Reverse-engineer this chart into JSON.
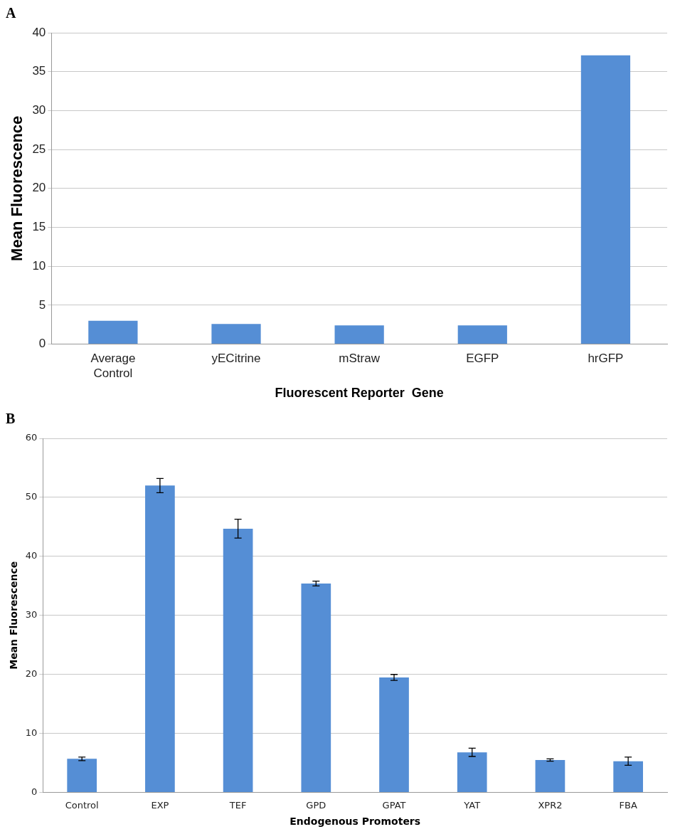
{
  "chart_data": [
    {
      "type": "bar",
      "title": "A",
      "categories": [
        "Average Control",
        "yECitrine",
        "mStraw",
        "EGFP",
        "hrGFP"
      ],
      "values": [
        3.0,
        2.6,
        2.4,
        2.4,
        37.1
      ],
      "color": "#558ed5",
      "xlabel": "Fluorescent Reporter  Gene",
      "ylabel": "Mean Fluorescence",
      "ylim": [
        0,
        40
      ],
      "yticks": [
        0,
        5,
        10,
        15,
        20,
        25,
        30,
        35,
        40
      ],
      "grid": "y"
    },
    {
      "type": "bar",
      "title": "B",
      "categories": [
        "Control",
        "EXP",
        "TEF",
        "GPD",
        "GPAT",
        "YAT",
        "XPR2",
        "FBA"
      ],
      "values": [
        5.7,
        52,
        44.7,
        35.4,
        19.5,
        6.8,
        5.5,
        5.3
      ],
      "errors": [
        0.3,
        1.2,
        1.6,
        0.4,
        0.5,
        0.7,
        0.2,
        0.7
      ],
      "color": "#558ed5",
      "xlabel": "Endogenous Promoters",
      "ylabel": "Mean Fluorescence",
      "ylim": [
        0,
        60
      ],
      "yticks": [
        0,
        10,
        20,
        30,
        40,
        50,
        60
      ],
      "grid": "y"
    }
  ]
}
